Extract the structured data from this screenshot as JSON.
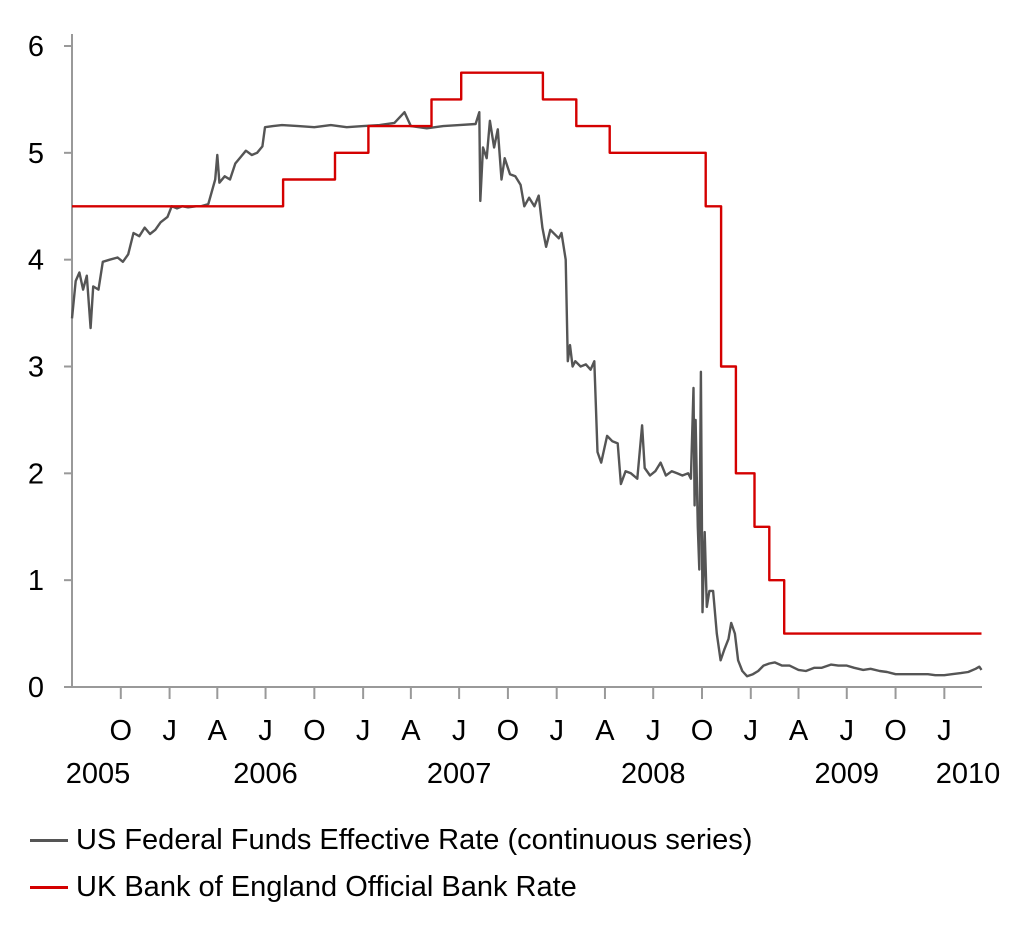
{
  "chart_data": {
    "type": "line",
    "x_unit": "month",
    "x_start": "2005-07",
    "x_end": "2010-03",
    "ylim": [
      0,
      6
    ],
    "y_ticks": [
      "0",
      "1",
      "2",
      "3",
      "4",
      "5",
      "6"
    ],
    "month_tick_labels": [
      {
        "date": "2005-10",
        "label": "O"
      },
      {
        "date": "2006-01",
        "label": "J"
      },
      {
        "date": "2006-04",
        "label": "A"
      },
      {
        "date": "2006-07",
        "label": "J"
      },
      {
        "date": "2006-10",
        "label": "O"
      },
      {
        "date": "2007-01",
        "label": "J"
      },
      {
        "date": "2007-04",
        "label": "A"
      },
      {
        "date": "2007-07",
        "label": "J"
      },
      {
        "date": "2007-10",
        "label": "O"
      },
      {
        "date": "2008-01",
        "label": "J"
      },
      {
        "date": "2008-04",
        "label": "A"
      },
      {
        "date": "2008-07",
        "label": "J"
      },
      {
        "date": "2008-10",
        "label": "O"
      },
      {
        "date": "2009-01",
        "label": "J"
      },
      {
        "date": "2009-04",
        "label": "A"
      },
      {
        "date": "2009-07",
        "label": "J"
      },
      {
        "date": "2009-10",
        "label": "O"
      },
      {
        "date": "2010-01",
        "label": "J"
      }
    ],
    "year_labels": [
      {
        "date": "2005-11",
        "label": "2005"
      },
      {
        "date": "2006-07",
        "label": "2006"
      },
      {
        "date": "2007-07",
        "label": "2007"
      },
      {
        "date": "2008-07",
        "label": "2008"
      },
      {
        "date": "2009-07",
        "label": "2009"
      },
      {
        "date": "2010-01",
        "label": "2010"
      }
    ],
    "grid": false,
    "legend_position": "bottom",
    "series": [
      {
        "name": "US Federal Funds Effective Rate (continuous series)",
        "color": "#555555",
        "style": "line",
        "points": [
          [
            "2005-07-01",
            3.45
          ],
          [
            "2005-07-08",
            3.8
          ],
          [
            "2005-07-15",
            3.88
          ],
          [
            "2005-07-22",
            3.72
          ],
          [
            "2005-07-29",
            3.85
          ],
          [
            "2005-08-05",
            3.36
          ],
          [
            "2005-08-10",
            3.75
          ],
          [
            "2005-08-20",
            3.72
          ],
          [
            "2005-08-28",
            3.98
          ],
          [
            "2005-09-10",
            4.0
          ],
          [
            "2005-09-25",
            4.02
          ],
          [
            "2005-10-05",
            3.98
          ],
          [
            "2005-10-15",
            4.05
          ],
          [
            "2005-10-25",
            4.25
          ],
          [
            "2005-11-05",
            4.22
          ],
          [
            "2005-11-15",
            4.3
          ],
          [
            "2005-11-25",
            4.24
          ],
          [
            "2005-12-05",
            4.28
          ],
          [
            "2005-12-15",
            4.35
          ],
          [
            "2005-12-28",
            4.4
          ],
          [
            "2006-01-05",
            4.5
          ],
          [
            "2006-01-15",
            4.48
          ],
          [
            "2006-01-25",
            4.5
          ],
          [
            "2006-02-05",
            4.49
          ],
          [
            "2006-02-20",
            4.5
          ],
          [
            "2006-03-01",
            4.5
          ],
          [
            "2006-03-15",
            4.52
          ],
          [
            "2006-03-28",
            4.75
          ],
          [
            "2006-04-01",
            4.98
          ],
          [
            "2006-04-05",
            4.72
          ],
          [
            "2006-04-15",
            4.78
          ],
          [
            "2006-04-25",
            4.75
          ],
          [
            "2006-05-05",
            4.9
          ],
          [
            "2006-05-15",
            4.96
          ],
          [
            "2006-05-25",
            5.02
          ],
          [
            "2006-06-05",
            4.98
          ],
          [
            "2006-06-15",
            5.0
          ],
          [
            "2006-06-25",
            5.06
          ],
          [
            "2006-06-30",
            5.24
          ],
          [
            "2006-07-15",
            5.25
          ],
          [
            "2006-08-01",
            5.26
          ],
          [
            "2006-09-01",
            5.25
          ],
          [
            "2006-10-01",
            5.24
          ],
          [
            "2006-11-01",
            5.26
          ],
          [
            "2006-12-01",
            5.24
          ],
          [
            "2007-01-01",
            5.25
          ],
          [
            "2007-02-01",
            5.26
          ],
          [
            "2007-03-01",
            5.28
          ],
          [
            "2007-03-20",
            5.38
          ],
          [
            "2007-04-01",
            5.25
          ],
          [
            "2007-05-01",
            5.23
          ],
          [
            "2007-06-01",
            5.25
          ],
          [
            "2007-07-01",
            5.26
          ],
          [
            "2007-08-01",
            5.27
          ],
          [
            "2007-08-08",
            5.38
          ],
          [
            "2007-08-10",
            4.55
          ],
          [
            "2007-08-15",
            5.05
          ],
          [
            "2007-08-22",
            4.95
          ],
          [
            "2007-08-28",
            5.3
          ],
          [
            "2007-09-05",
            5.05
          ],
          [
            "2007-09-12",
            5.22
          ],
          [
            "2007-09-19",
            4.75
          ],
          [
            "2007-09-25",
            4.95
          ],
          [
            "2007-10-05",
            4.8
          ],
          [
            "2007-10-15",
            4.78
          ],
          [
            "2007-10-25",
            4.7
          ],
          [
            "2007-11-01",
            4.5
          ],
          [
            "2007-11-10",
            4.58
          ],
          [
            "2007-11-20",
            4.5
          ],
          [
            "2007-11-28",
            4.6
          ],
          [
            "2007-12-05",
            4.3
          ],
          [
            "2007-12-12",
            4.12
          ],
          [
            "2007-12-20",
            4.28
          ],
          [
            "2008-01-05",
            4.2
          ],
          [
            "2008-01-10",
            4.25
          ],
          [
            "2008-01-18",
            4.0
          ],
          [
            "2008-01-22",
            3.05
          ],
          [
            "2008-01-26",
            3.2
          ],
          [
            "2008-01-31",
            3.0
          ],
          [
            "2008-02-05",
            3.05
          ],
          [
            "2008-02-15",
            3.0
          ],
          [
            "2008-02-25",
            3.02
          ],
          [
            "2008-03-05",
            2.97
          ],
          [
            "2008-03-12",
            3.05
          ],
          [
            "2008-03-18",
            2.2
          ],
          [
            "2008-03-25",
            2.1
          ],
          [
            "2008-04-05",
            2.35
          ],
          [
            "2008-04-15",
            2.3
          ],
          [
            "2008-04-25",
            2.28
          ],
          [
            "2008-05-01",
            1.9
          ],
          [
            "2008-05-10",
            2.02
          ],
          [
            "2008-05-20",
            2.0
          ],
          [
            "2008-06-01",
            1.95
          ],
          [
            "2008-06-10",
            2.45
          ],
          [
            "2008-06-15",
            2.05
          ],
          [
            "2008-06-25",
            1.98
          ],
          [
            "2008-07-05",
            2.02
          ],
          [
            "2008-07-15",
            2.1
          ],
          [
            "2008-07-25",
            1.98
          ],
          [
            "2008-08-05",
            2.02
          ],
          [
            "2008-08-15",
            2.0
          ],
          [
            "2008-08-25",
            1.98
          ],
          [
            "2008-09-05",
            2.0
          ],
          [
            "2008-09-10",
            1.95
          ],
          [
            "2008-09-15",
            2.8
          ],
          [
            "2008-09-17",
            1.7
          ],
          [
            "2008-09-19",
            2.5
          ],
          [
            "2008-09-23",
            1.5
          ],
          [
            "2008-09-26",
            1.1
          ],
          [
            "2008-09-29",
            2.95
          ],
          [
            "2008-10-02",
            0.7
          ],
          [
            "2008-10-06",
            1.45
          ],
          [
            "2008-10-10",
            0.75
          ],
          [
            "2008-10-15",
            0.9
          ],
          [
            "2008-10-22",
            0.9
          ],
          [
            "2008-10-29",
            0.5
          ],
          [
            "2008-11-05",
            0.25
          ],
          [
            "2008-11-12",
            0.35
          ],
          [
            "2008-11-20",
            0.45
          ],
          [
            "2008-11-25",
            0.6
          ],
          [
            "2008-12-02",
            0.5
          ],
          [
            "2008-12-08",
            0.25
          ],
          [
            "2008-12-16",
            0.15
          ],
          [
            "2008-12-25",
            0.1
          ],
          [
            "2009-01-05",
            0.12
          ],
          [
            "2009-01-15",
            0.15
          ],
          [
            "2009-01-25",
            0.2
          ],
          [
            "2009-02-05",
            0.22
          ],
          [
            "2009-02-15",
            0.23
          ],
          [
            "2009-03-01",
            0.2
          ],
          [
            "2009-03-15",
            0.2
          ],
          [
            "2009-04-01",
            0.16
          ],
          [
            "2009-04-15",
            0.15
          ],
          [
            "2009-05-01",
            0.18
          ],
          [
            "2009-05-15",
            0.18
          ],
          [
            "2009-06-01",
            0.21
          ],
          [
            "2009-06-15",
            0.2
          ],
          [
            "2009-07-01",
            0.2
          ],
          [
            "2009-07-15",
            0.18
          ],
          [
            "2009-08-01",
            0.16
          ],
          [
            "2009-08-15",
            0.17
          ],
          [
            "2009-09-01",
            0.15
          ],
          [
            "2009-09-15",
            0.14
          ],
          [
            "2009-10-01",
            0.12
          ],
          [
            "2009-10-15",
            0.12
          ],
          [
            "2009-11-01",
            0.12
          ],
          [
            "2009-11-15",
            0.12
          ],
          [
            "2009-12-01",
            0.12
          ],
          [
            "2009-12-15",
            0.11
          ],
          [
            "2010-01-01",
            0.11
          ],
          [
            "2010-01-15",
            0.12
          ],
          [
            "2010-02-01",
            0.13
          ],
          [
            "2010-02-15",
            0.14
          ],
          [
            "2010-03-01",
            0.17
          ],
          [
            "2010-03-08",
            0.19
          ],
          [
            "2010-03-12",
            0.16
          ]
        ]
      },
      {
        "name": "UK Bank of England Official Bank Rate",
        "color": "#d40000",
        "style": "step",
        "points": [
          [
            "2005-07-01",
            4.5
          ],
          [
            "2006-08-03",
            4.75
          ],
          [
            "2006-11-09",
            5.0
          ],
          [
            "2007-01-11",
            5.25
          ],
          [
            "2007-05-10",
            5.5
          ],
          [
            "2007-07-05",
            5.75
          ],
          [
            "2007-12-06",
            5.5
          ],
          [
            "2008-02-07",
            5.25
          ],
          [
            "2008-04-10",
            5.0
          ],
          [
            "2008-10-08",
            4.5
          ],
          [
            "2008-11-06",
            3.0
          ],
          [
            "2008-12-04",
            2.0
          ],
          [
            "2009-01-08",
            1.5
          ],
          [
            "2009-02-05",
            1.0
          ],
          [
            "2009-03-05",
            0.5
          ],
          [
            "2010-03-12",
            0.5
          ]
        ]
      }
    ]
  }
}
